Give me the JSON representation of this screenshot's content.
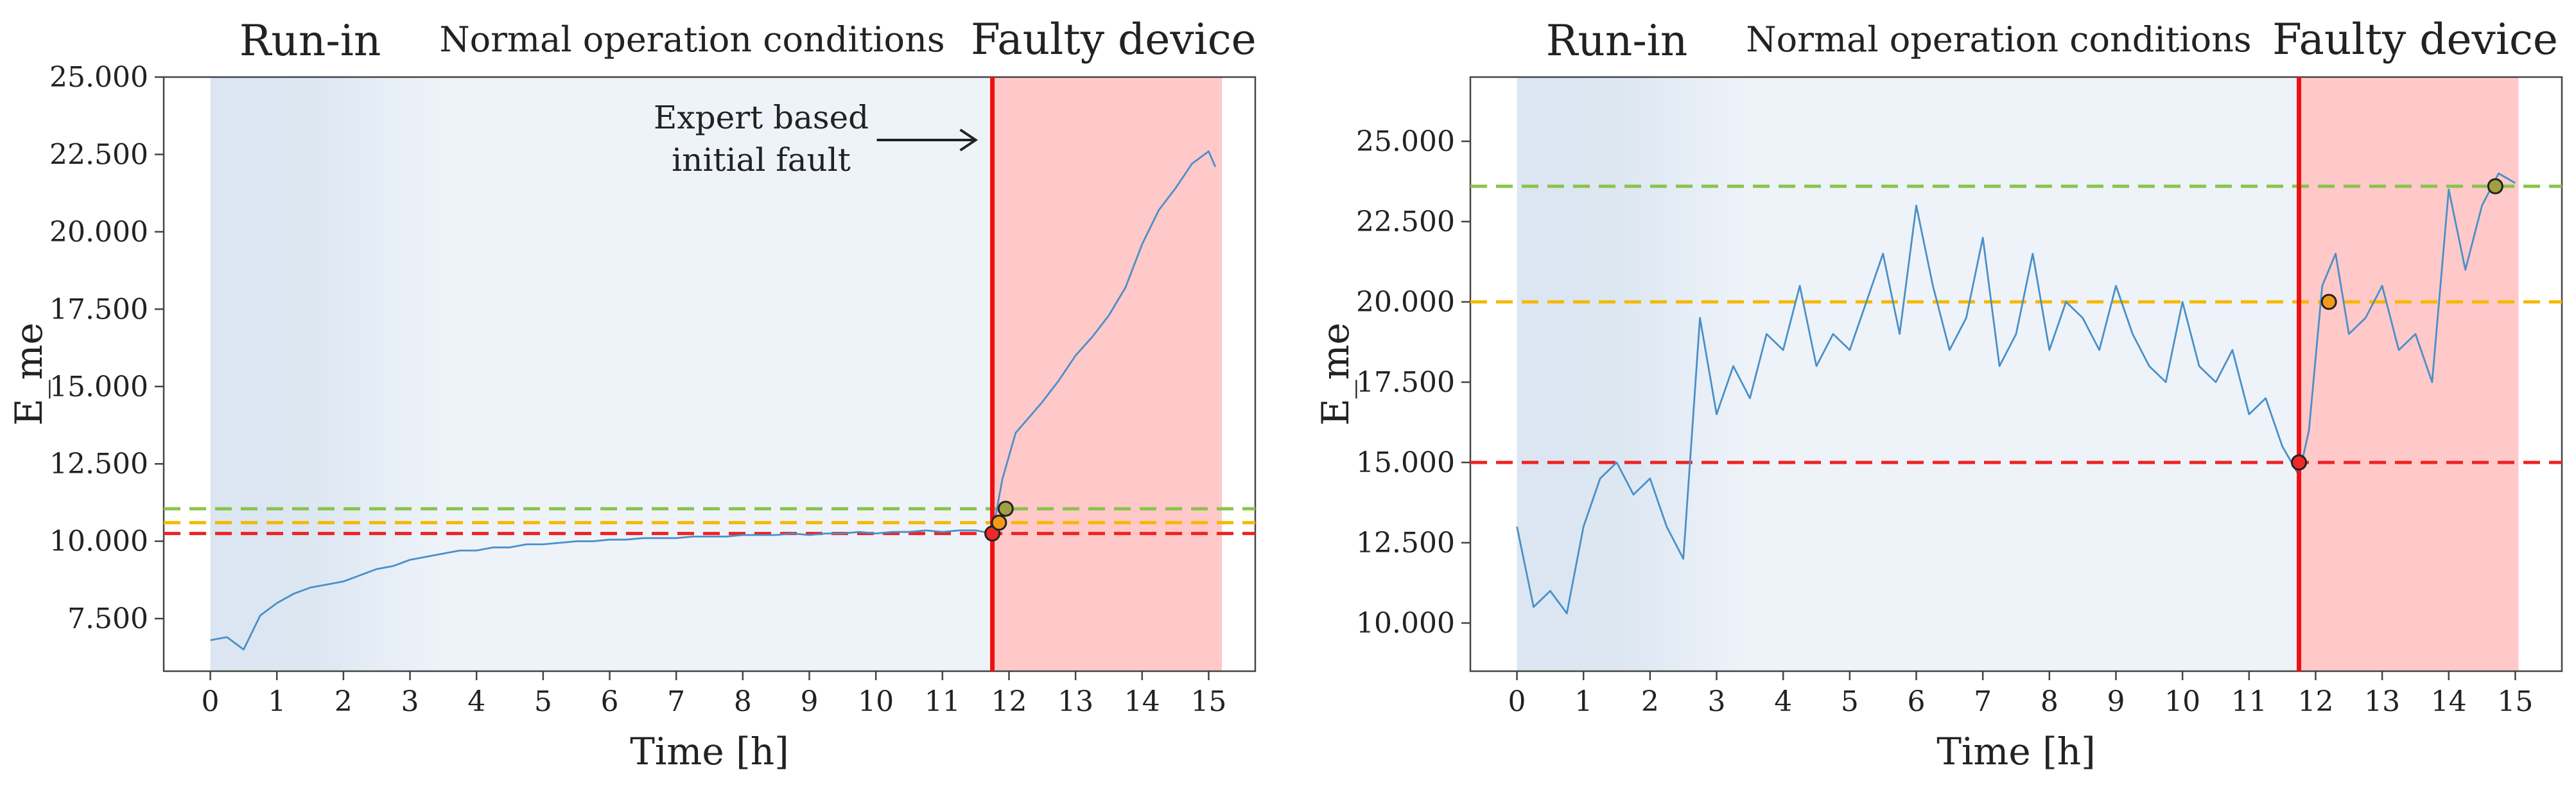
{
  "colors": {
    "runin_start": "#dbe6f2",
    "normal_bg": "#eef3f9",
    "fault_bg": "#ffc9c9",
    "signal": "#4a90c8",
    "fault_line": "#ee1111",
    "red_threshold": "#ee2222",
    "orange_threshold": "#f5b800",
    "green_threshold": "#88c34a",
    "marker_fill": "#f39a1a"
  },
  "chart_data": [
    {
      "type": "line",
      "regions": [
        {
          "label": "Run-in",
          "x_start": 0,
          "x_end": 3.5
        },
        {
          "label": "Normal operation conditions",
          "x_start": 3.5,
          "x_end": 11.75
        },
        {
          "label": "Faulty device",
          "x_start": 11.75,
          "x_end": 15.2
        }
      ],
      "xlabel": "Time [h]",
      "ylabel": "E_me",
      "xlim": [
        -0.7,
        15.7
      ],
      "ylim": [
        5800,
        25000
      ],
      "xticks": [
        "0",
        "1",
        "2",
        "3",
        "4",
        "5",
        "6",
        "7",
        "8",
        "9",
        "10",
        "11",
        "12",
        "13",
        "14",
        "15"
      ],
      "yticks": [
        "7.500",
        "10.000",
        "12.500",
        "15.000",
        "17.500",
        "20.000",
        "22.500",
        "25.000"
      ],
      "ytick_values": [
        7500,
        10000,
        12500,
        15000,
        17500,
        20000,
        22500,
        25000
      ],
      "fault_onset_x": 11.75,
      "annotation": {
        "line1": "Expert based",
        "line2": "initial fault",
        "x": 11.75
      },
      "thresholds": [
        {
          "name": "red",
          "y": 10250
        },
        {
          "name": "orange",
          "y": 10600
        },
        {
          "name": "green",
          "y": 11050
        }
      ],
      "markers": [
        {
          "x": 11.75,
          "y": 10250,
          "color": "red"
        },
        {
          "x": 11.85,
          "y": 10600,
          "color": "orange"
        },
        {
          "x": 11.95,
          "y": 11050,
          "color": "green"
        }
      ],
      "series": [
        {
          "name": "E_me",
          "x": [
            0,
            0.25,
            0.5,
            0.75,
            1,
            1.25,
            1.5,
            1.75,
            2,
            2.25,
            2.5,
            2.75,
            3,
            3.25,
            3.5,
            3.75,
            4,
            4.25,
            4.5,
            4.75,
            5,
            5.25,
            5.5,
            5.75,
            6,
            6.25,
            6.5,
            6.75,
            7,
            7.25,
            7.5,
            7.75,
            8,
            8.25,
            8.5,
            8.75,
            9,
            9.25,
            9.5,
            9.75,
            10,
            10.25,
            10.5,
            10.75,
            11,
            11.25,
            11.5,
            11.75,
            11.9,
            12.1,
            12.3,
            12.5,
            12.75,
            13,
            13.25,
            13.5,
            13.75,
            14,
            14.25,
            14.5,
            14.75,
            15,
            15.1
          ],
          "y": [
            6800,
            6900,
            6500,
            7600,
            8000,
            8300,
            8500,
            8600,
            8700,
            8900,
            9100,
            9200,
            9400,
            9500,
            9600,
            9700,
            9700,
            9800,
            9800,
            9900,
            9900,
            9950,
            10000,
            10000,
            10050,
            10050,
            10100,
            10100,
            10100,
            10150,
            10150,
            10150,
            10200,
            10200,
            10200,
            10250,
            10200,
            10250,
            10250,
            10300,
            10250,
            10300,
            10300,
            10350,
            10300,
            10350,
            10350,
            10250,
            12000,
            13500,
            14000,
            14500,
            15200,
            16000,
            16600,
            17300,
            18200,
            19600,
            20700,
            21400,
            22200,
            22600,
            22100
          ]
        }
      ]
    },
    {
      "type": "line",
      "regions": [
        {
          "label": "Run-in",
          "x_start": 0,
          "x_end": 3.5
        },
        {
          "label": "Normal operation conditions",
          "x_start": 3.5,
          "x_end": 11.75
        },
        {
          "label": "Faulty device",
          "x_start": 11.75,
          "x_end": 15.05
        }
      ],
      "xlabel": "Time [h]",
      "ylabel": "E_me",
      "xlim": [
        -0.7,
        15.7
      ],
      "ylim": [
        8500,
        27000
      ],
      "xticks": [
        "0",
        "1",
        "2",
        "3",
        "4",
        "5",
        "6",
        "7",
        "8",
        "9",
        "10",
        "11",
        "12",
        "13",
        "14",
        "15"
      ],
      "yticks": [
        "10.000",
        "12.500",
        "15.000",
        "17.500",
        "20.000",
        "22.500",
        "25.000"
      ],
      "ytick_values": [
        10000,
        12500,
        15000,
        17500,
        20000,
        22500,
        25000
      ],
      "fault_onset_x": 11.75,
      "thresholds": [
        {
          "name": "red",
          "y": 15000
        },
        {
          "name": "orange",
          "y": 20000
        },
        {
          "name": "green",
          "y": 23600
        }
      ],
      "markers": [
        {
          "x": 11.75,
          "y": 15000,
          "color": "red"
        },
        {
          "x": 12.2,
          "y": 20000,
          "color": "orange"
        },
        {
          "x": 14.7,
          "y": 23600,
          "color": "green"
        }
      ],
      "series": [
        {
          "name": "E_me",
          "x": [
            0,
            0.25,
            0.5,
            0.75,
            1,
            1.25,
            1.5,
            1.75,
            2,
            2.25,
            2.5,
            2.75,
            3,
            3.25,
            3.5,
            3.75,
            4,
            4.25,
            4.5,
            4.75,
            5,
            5.25,
            5.5,
            5.75,
            6,
            6.25,
            6.5,
            6.75,
            7,
            7.25,
            7.5,
            7.75,
            8,
            8.25,
            8.5,
            8.75,
            9,
            9.25,
            9.5,
            9.75,
            10,
            10.25,
            10.5,
            10.75,
            11,
            11.25,
            11.5,
            11.75,
            11.9,
            12.1,
            12.3,
            12.5,
            12.75,
            13,
            13.25,
            13.5,
            13.75,
            14,
            14.25,
            14.5,
            14.75,
            15
          ],
          "y": [
            13000,
            10500,
            11000,
            10300,
            13000,
            14500,
            15000,
            14000,
            14500,
            13000,
            12000,
            19500,
            16500,
            18000,
            17000,
            19000,
            18500,
            20500,
            18000,
            19000,
            18500,
            20000,
            21500,
            19000,
            23000,
            20500,
            18500,
            19500,
            22000,
            18000,
            19000,
            21500,
            18500,
            20000,
            19500,
            18500,
            20500,
            19000,
            18000,
            17500,
            20000,
            18000,
            17500,
            18500,
            16500,
            17000,
            15500,
            14600,
            16000,
            20500,
            21500,
            19000,
            19500,
            20500,
            18500,
            19000,
            17500,
            23500,
            21000,
            23000,
            24000,
            23700
          ]
        }
      ]
    }
  ]
}
